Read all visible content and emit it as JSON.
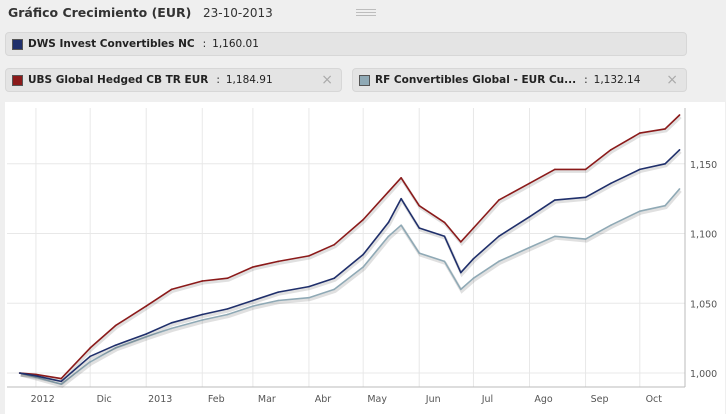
{
  "header": {
    "title": "Gráfico Crecimiento (EUR)",
    "date": "23-10-2013"
  },
  "legend": [
    {
      "name": "DWS Invest Convertibles NC",
      "sep": ":",
      "value": "1,160.01",
      "color": "#1f2f6b",
      "closable": false
    },
    {
      "name": "UBS Global Hedged CB TR EUR",
      "sep": ":",
      "value": "1,184.91",
      "color": "#8b1a1a",
      "closable": true,
      "close": "×"
    },
    {
      "name": "RF Convertibles Global - EUR Cu...",
      "sep": ":",
      "value": "1,132.14",
      "color": "#8fa9b5",
      "closable": true,
      "close": "×"
    }
  ],
  "chart_data": {
    "type": "line",
    "x_ticks": [
      "2012",
      "Dic",
      "2013",
      "Feb",
      "Mar",
      "Abr",
      "May",
      "Jun",
      "Jul",
      "Ago",
      "Sep",
      "Oct"
    ],
    "y_ticks": [
      "1,000",
      "1,050",
      "1,100",
      "1,150"
    ],
    "ylim": [
      990,
      1190
    ],
    "grid": true,
    "x": [
      "2012-10-23",
      "2012-11-01",
      "2012-11-15",
      "2012-12-01",
      "2012-12-15",
      "2013-01-01",
      "2013-01-15",
      "2013-02-01",
      "2013-02-15",
      "2013-03-01",
      "2013-03-15",
      "2013-04-01",
      "2013-04-15",
      "2013-05-01",
      "2013-05-15",
      "2013-05-22",
      "2013-06-01",
      "2013-06-15",
      "2013-06-24",
      "2013-07-01",
      "2013-07-15",
      "2013-08-01",
      "2013-08-15",
      "2013-09-01",
      "2013-09-15",
      "2013-10-01",
      "2013-10-15",
      "2013-10-23"
    ],
    "series": [
      {
        "name": "DWS Invest Convertibles NC",
        "color": "#1f2f6b",
        "values": [
          1000,
          998,
          994,
          1012,
          1020,
          1028,
          1036,
          1042,
          1046,
          1052,
          1058,
          1062,
          1068,
          1085,
          1108,
          1125,
          1104,
          1098,
          1072,
          1082,
          1098,
          1112,
          1124,
          1126,
          1136,
          1146,
          1150,
          1160
        ]
      },
      {
        "name": "UBS Global Hedged CB TR EUR",
        "color": "#8b1a1a",
        "values": [
          1000,
          999,
          996,
          1018,
          1034,
          1048,
          1060,
          1066,
          1068,
          1076,
          1080,
          1084,
          1092,
          1110,
          1130,
          1140,
          1120,
          1108,
          1094,
          1104,
          1124,
          1136,
          1146,
          1146,
          1160,
          1172,
          1175,
          1185
        ]
      },
      {
        "name": "RF Convertibles Global - EUR Cu...",
        "color": "#8fa9b5",
        "values": [
          1000,
          997,
          992,
          1008,
          1018,
          1026,
          1032,
          1038,
          1042,
          1048,
          1052,
          1054,
          1060,
          1076,
          1098,
          1106,
          1086,
          1080,
          1060,
          1068,
          1080,
          1090,
          1098,
          1096,
          1106,
          1116,
          1120,
          1132
        ]
      }
    ]
  }
}
